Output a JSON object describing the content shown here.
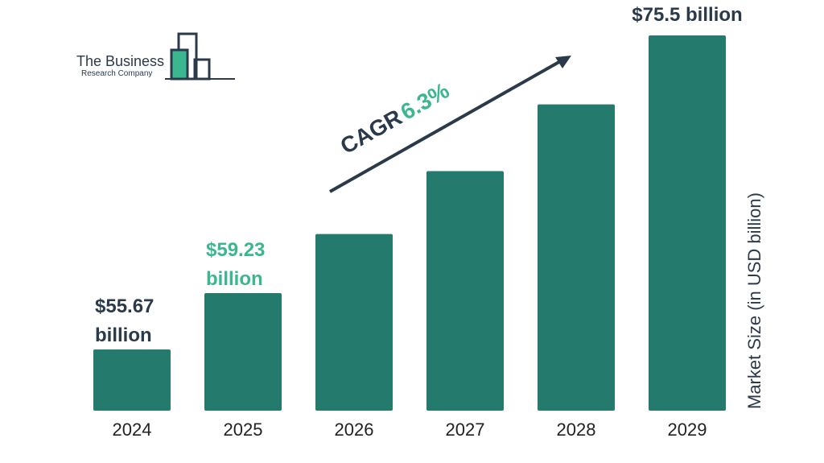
{
  "logo": {
    "line1": "The Business",
    "line2": "Research Company"
  },
  "cagr": {
    "label": "CAGR",
    "value": "6.3%"
  },
  "chart_data": {
    "type": "bar",
    "categories": [
      "2024",
      "2025",
      "2026",
      "2027",
      "2028",
      "2029"
    ],
    "values": [
      55.67,
      59.23,
      62.96,
      66.93,
      71.15,
      75.5
    ],
    "ylabel": "Market Size (in USD billion)",
    "data_labels": [
      {
        "index": 0,
        "line1": "$55.67",
        "line2": "billion",
        "color": "#2b3a4a"
      },
      {
        "index": 1,
        "line1": "$59.23",
        "line2": "billion",
        "color": "#3bb78f"
      },
      {
        "index": 5,
        "line1": "$75.5 billion",
        "line2": "",
        "color": "#2b3a4a"
      }
    ],
    "colors": {
      "bar": "#237a6d",
      "dark_text": "#2b3a4a",
      "accent": "#3bb78f"
    }
  }
}
